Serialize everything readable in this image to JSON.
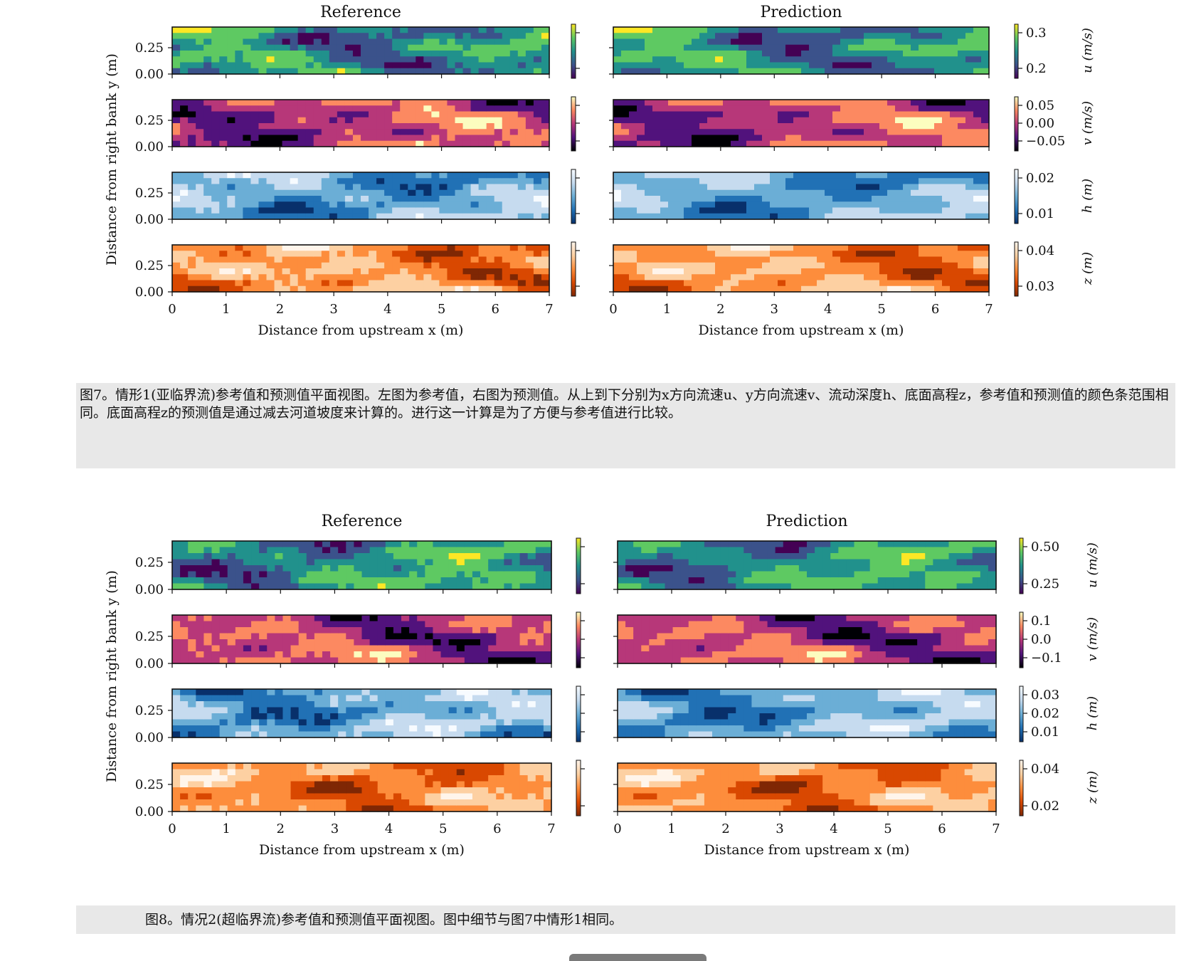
{
  "figures": [
    {
      "id": "fig7",
      "caption": "图7。情形1(亚临界流)参考值和预测值平面视图。左图为参考值，右图为预测值。从上到下分别为x方向流速u、y方向流速v、流动深度h、底面高程z，参考值和预测值的颜色条范围相同。底面高程z的预测值是通过减去河道坡度来计算的。进行这一计算是为了方便与参考值进行比较。",
      "chart_data": {
        "type": "heatmap",
        "panel_titles": [
          "Reference",
          "Prediction"
        ],
        "xlabel": "Distance from upstream x (m)",
        "ylabel": "Distance from right bank y (m)",
        "xlim": [
          0,
          7
        ],
        "x_ticks": [
          "0",
          "1",
          "2",
          "3",
          "4",
          "5",
          "6",
          "7"
        ],
        "y_ticks": [
          "0.00",
          "0.25"
        ],
        "rows": [
          {
            "variable": "u",
            "label": "u (m/s)",
            "colormap": "viridis",
            "cbar_ticks": [
              "0.3",
              "0.2"
            ]
          },
          {
            "variable": "v",
            "label": "v (m/s)",
            "colormap": "magma",
            "cbar_ticks": [
              "0.05",
              "0.00",
              "−0.05"
            ]
          },
          {
            "variable": "h",
            "label": "h (m)",
            "colormap": "blues",
            "cbar_ticks": [
              "0.02",
              "0.01"
            ]
          },
          {
            "variable": "z",
            "label": "z (m)",
            "colormap": "oranges",
            "cbar_ticks": [
              "0.04",
              "0.03"
            ]
          }
        ]
      }
    },
    {
      "id": "fig8",
      "caption": "图8。情况2(超临界流)参考值和预测值平面视图。图中细节与图7中情形1相同。",
      "chart_data": {
        "type": "heatmap",
        "panel_titles": [
          "Reference",
          "Prediction"
        ],
        "xlabel": "Distance from upstream x (m)",
        "ylabel": "Distance from right bank y (m)",
        "xlim": [
          0,
          7
        ],
        "x_ticks": [
          "0",
          "1",
          "2",
          "3",
          "4",
          "5",
          "6",
          "7"
        ],
        "y_ticks": [
          "0.00",
          "0.25"
        ],
        "rows": [
          {
            "variable": "u",
            "label": "u (m/s)",
            "colormap": "viridis",
            "cbar_ticks": [
              "0.50",
              "0.25"
            ]
          },
          {
            "variable": "v",
            "label": "v (m/s)",
            "colormap": "magma",
            "cbar_ticks": [
              "0.1",
              "0.0",
              "−0.1"
            ]
          },
          {
            "variable": "h",
            "label": "h (m)",
            "colormap": "blues",
            "cbar_ticks": [
              "0.03",
              "0.02",
              "0.01"
            ]
          },
          {
            "variable": "z",
            "label": "z (m)",
            "colormap": "oranges",
            "cbar_ticks": [
              "0.04",
              "0.02"
            ]
          }
        ]
      }
    }
  ],
  "colors": {
    "viridis": [
      "#440154",
      "#3b528b",
      "#21918c",
      "#5ec962",
      "#fde725"
    ],
    "magma": [
      "#000004",
      "#51127c",
      "#b73779",
      "#fc8961",
      "#fcfdbf"
    ],
    "blues": [
      "#08306b",
      "#2171b5",
      "#6baed6",
      "#c6dbef",
      "#f7fbff"
    ],
    "oranges": [
      "#7f2704",
      "#d94801",
      "#fd8d3c",
      "#fdd0a2",
      "#fff5eb"
    ],
    "caption_bg": "#e8e8e8"
  }
}
